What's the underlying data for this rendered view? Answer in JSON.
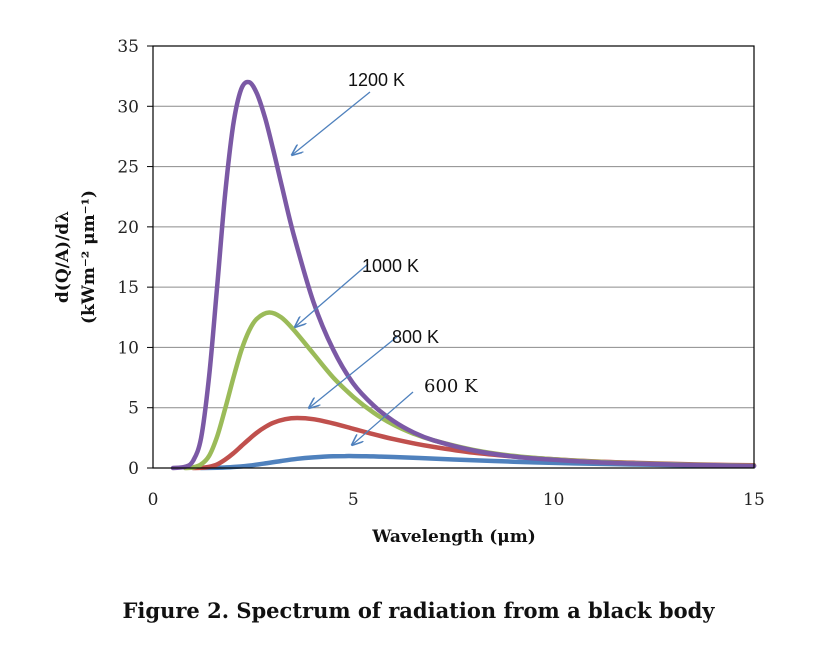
{
  "caption": "Figure 2. Spectrum of radiation from a black body",
  "chart_data": {
    "type": "line",
    "xlabel": "Wavelength (μm)",
    "ylabel_line1": "d(Q/A)/dλ",
    "ylabel_line2": "(kWm⁻² μm⁻¹)",
    "xlim": [
      0,
      15
    ],
    "ylim": [
      0,
      35
    ],
    "xticks": [
      0,
      5,
      10,
      15
    ],
    "yticks": [
      0,
      5,
      10,
      15,
      20,
      25,
      30,
      35
    ],
    "grid": "horizontal",
    "series": [
      {
        "name": "1200 K",
        "color": "#7B59A5",
        "x": [
          0.5,
          0.8,
          1.0,
          1.2,
          1.4,
          1.6,
          1.8,
          2.0,
          2.2,
          2.4,
          2.6,
          2.8,
          3.0,
          3.2,
          3.5,
          4.0,
          4.5,
          5.0,
          5.5,
          6.0,
          6.5,
          7.0,
          8.0,
          9.0,
          10.0,
          11.0,
          12.0,
          13.0,
          14.0,
          15.0
        ],
        "y": [
          0,
          0.1,
          0.6,
          2.5,
          7.6,
          15.0,
          22.7,
          28.4,
          31.4,
          32.0,
          31.0,
          29.0,
          26.4,
          23.6,
          19.5,
          13.8,
          9.8,
          7.0,
          5.2,
          3.9,
          2.95,
          2.3,
          1.45,
          0.95,
          0.68,
          0.49,
          0.37,
          0.28,
          0.22,
          0.17
        ]
      },
      {
        "name": "1000 K",
        "color": "#9BBB59",
        "x": [
          0.8,
          1.0,
          1.2,
          1.4,
          1.6,
          1.8,
          2.0,
          2.2,
          2.4,
          2.6,
          2.9,
          3.2,
          3.5,
          4.0,
          4.5,
          5.0,
          5.5,
          6.0,
          6.5,
          7.0,
          8.0,
          9.0,
          10.0,
          11.0,
          12.0,
          13.0,
          14.0,
          15.0
        ],
        "y": [
          0,
          0.05,
          0.3,
          1.0,
          2.6,
          4.9,
          7.4,
          9.7,
          11.4,
          12.4,
          12.9,
          12.5,
          11.5,
          9.5,
          7.5,
          5.9,
          4.6,
          3.6,
          2.85,
          2.3,
          1.5,
          1.0,
          0.72,
          0.53,
          0.4,
          0.31,
          0.24,
          0.19
        ]
      },
      {
        "name": "800 K",
        "color": "#C0504D",
        "x": [
          1.0,
          1.2,
          1.4,
          1.6,
          1.8,
          2.0,
          2.2,
          2.4,
          2.6,
          2.8,
          3.0,
          3.3,
          3.6,
          4.0,
          4.5,
          5.0,
          5.5,
          6.0,
          6.5,
          7.0,
          8.0,
          9.0,
          10.0,
          11.0,
          12.0,
          13.0,
          14.0,
          15.0
        ],
        "y": [
          0,
          0.02,
          0.1,
          0.3,
          0.7,
          1.2,
          1.8,
          2.4,
          2.95,
          3.4,
          3.75,
          4.05,
          4.15,
          4.05,
          3.7,
          3.25,
          2.8,
          2.4,
          2.05,
          1.75,
          1.27,
          0.95,
          0.72,
          0.55,
          0.43,
          0.34,
          0.27,
          0.22
        ]
      },
      {
        "name": "600 K",
        "color": "#4F81BD",
        "x": [
          1.2,
          1.6,
          2.0,
          2.4,
          2.8,
          3.2,
          3.6,
          4.0,
          4.5,
          4.8,
          5.0,
          5.5,
          6.0,
          7.0,
          8.0,
          9.0,
          10.0,
          11.0,
          12.0,
          13.0,
          14.0,
          15.0
        ],
        "y": [
          0,
          0.02,
          0.08,
          0.2,
          0.38,
          0.58,
          0.76,
          0.88,
          0.97,
          0.99,
          0.99,
          0.96,
          0.91,
          0.78,
          0.64,
          0.52,
          0.42,
          0.35,
          0.29,
          0.24,
          0.2,
          0.17
        ]
      }
    ],
    "annotations": [
      {
        "label": "1200 K",
        "series": "1200 K"
      },
      {
        "label": "1000 K",
        "series": "1000 K"
      },
      {
        "label": "800 K",
        "series": "800 K"
      },
      {
        "label": "600 K",
        "series": "600 K"
      }
    ]
  }
}
